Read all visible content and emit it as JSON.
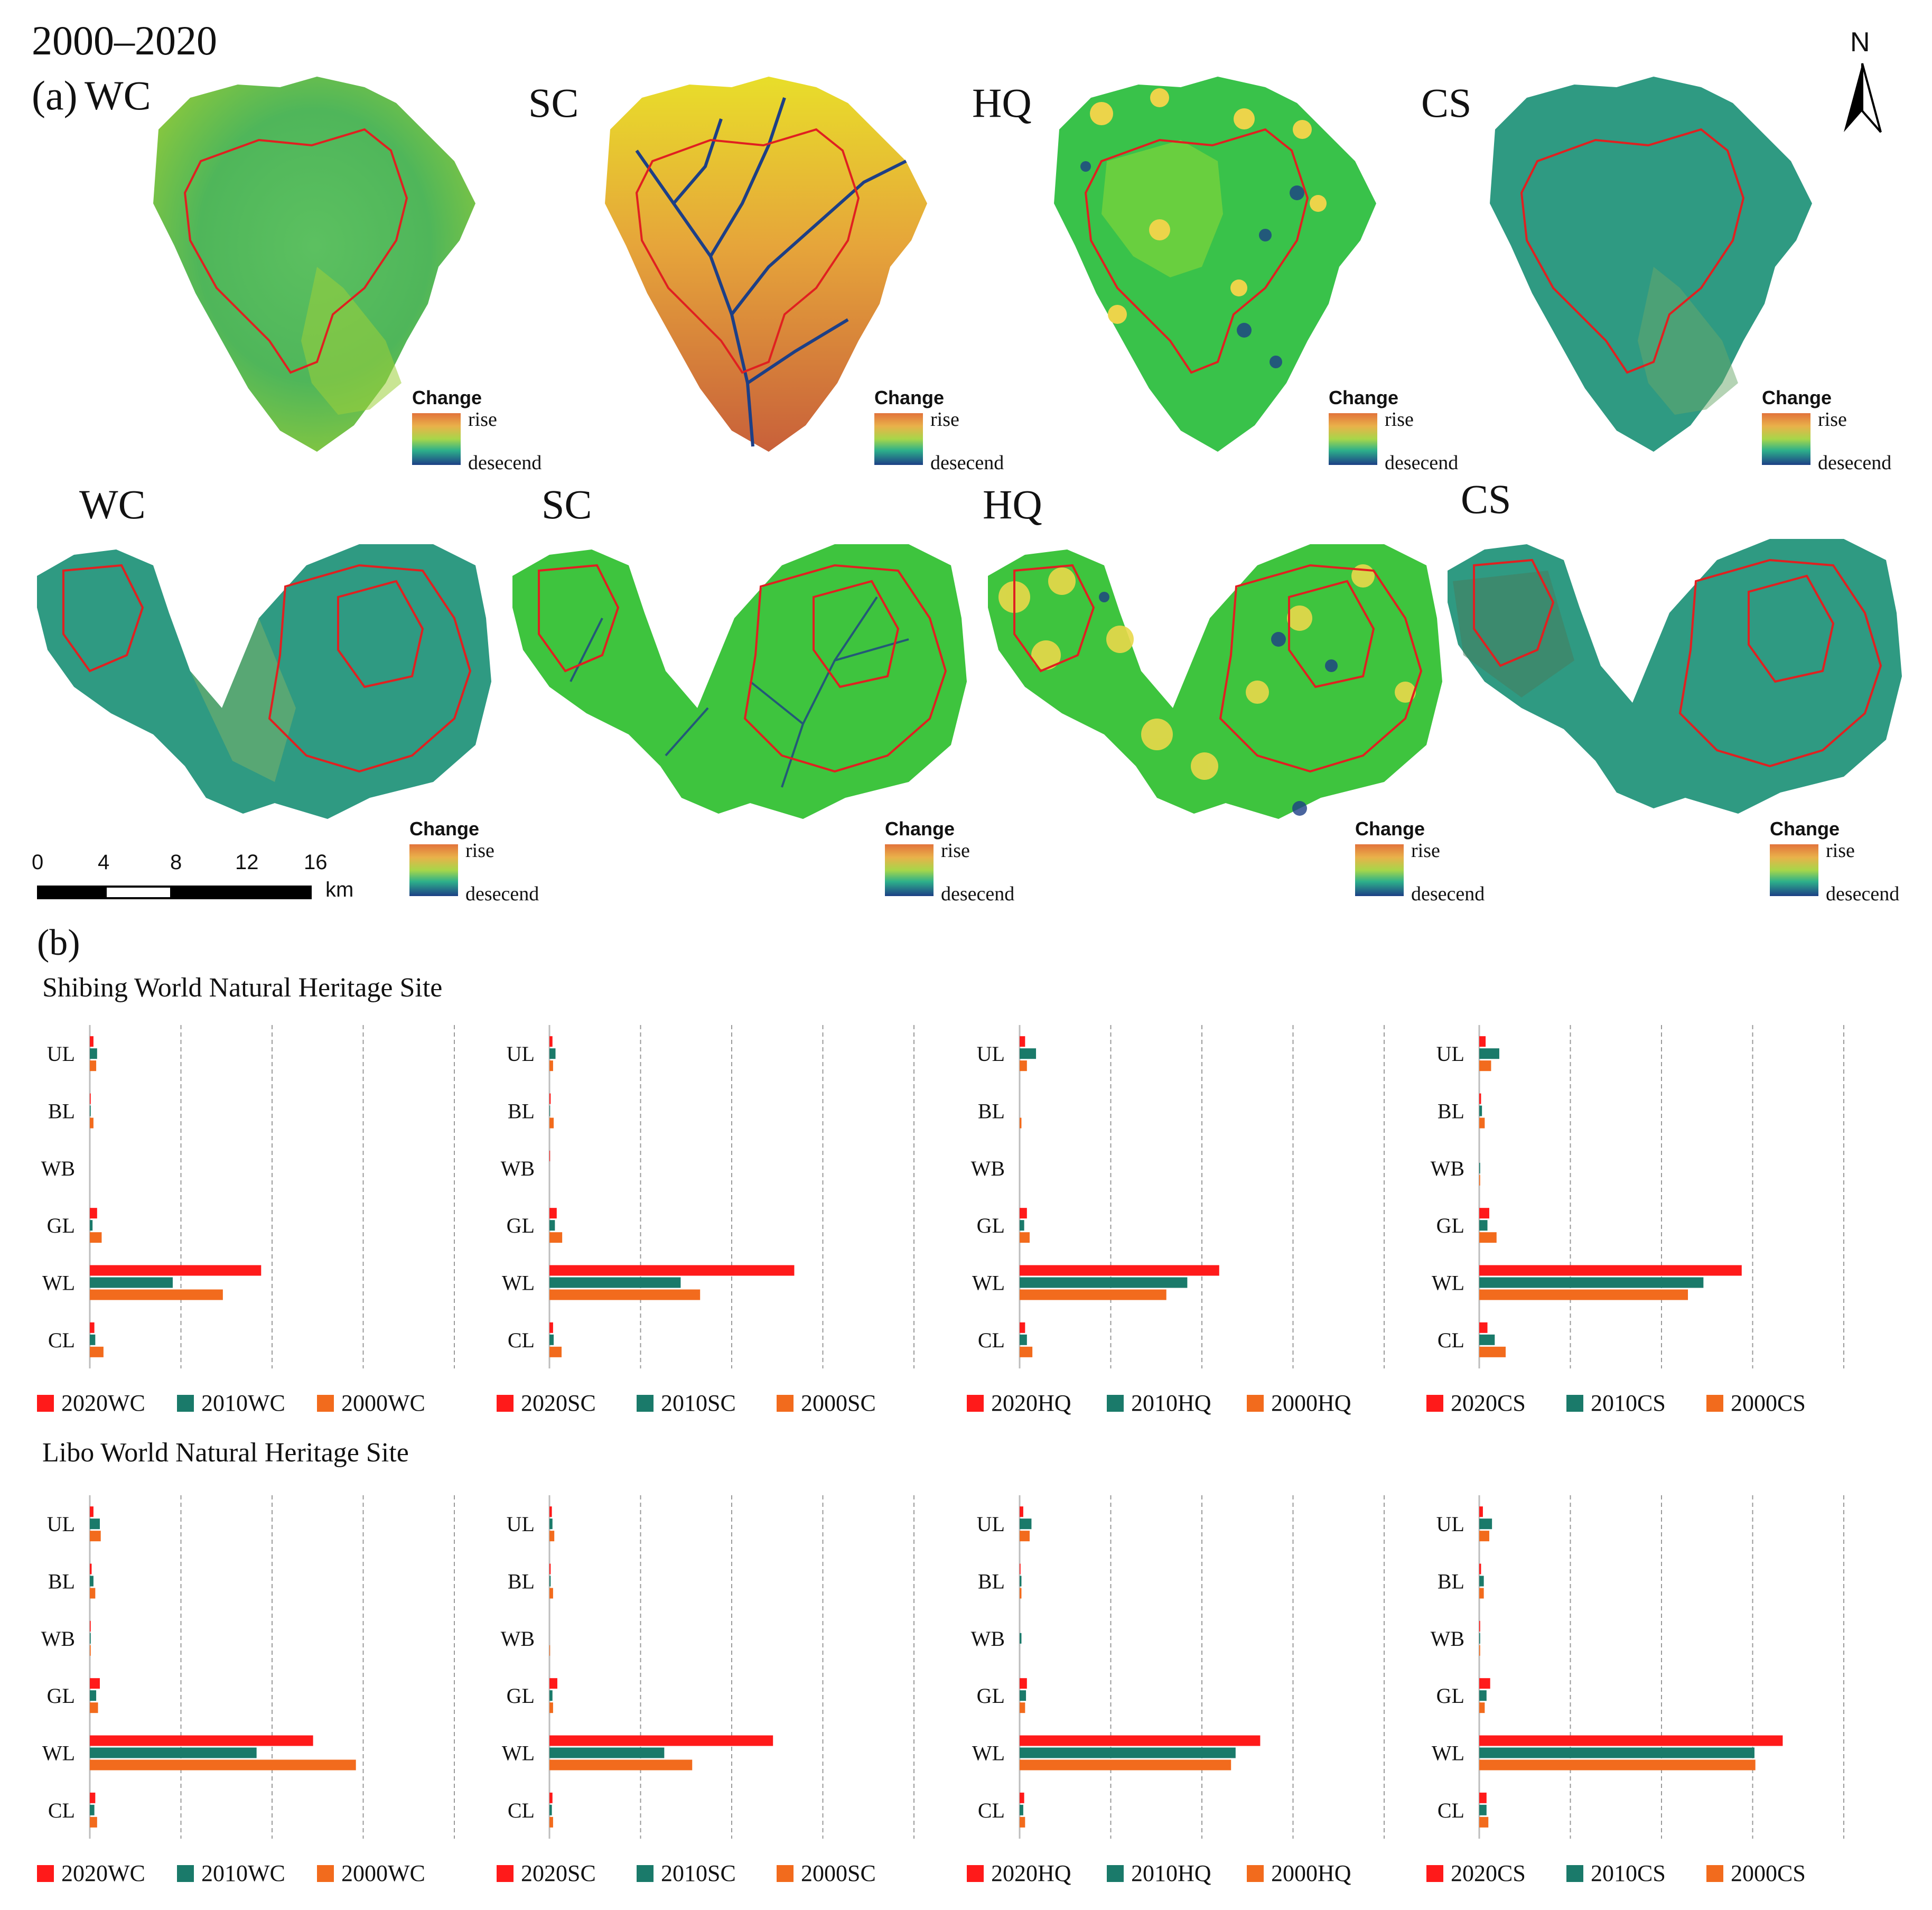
{
  "figure": {
    "period_title": "2000–2020",
    "panel_a_label": "(a)",
    "panel_b_label": "(b)",
    "north_label": "N",
    "map_row1_titles": [
      "WC",
      "SC",
      "HQ",
      "CS"
    ],
    "map_row2_titles": [
      "WC",
      "SC",
      "HQ",
      "CS"
    ],
    "legend": {
      "title": "Change",
      "high": "rise",
      "low": "desecend"
    },
    "scalebar": {
      "ticks": [
        "0",
        "4",
        "8",
        "12",
        "16"
      ],
      "unit": "km"
    },
    "colors": {
      "y2020": "#ff1a1a",
      "y2010": "#1a7a6a",
      "y2000": "#f26b1d",
      "boundary": "#e02020",
      "gridline": "#999999"
    }
  },
  "site_titles": {
    "shibing": "Shibing World Natural Heritage Site",
    "libo": "Libo World Natural Heritage Site"
  },
  "chart_data": [
    {
      "type": "bar",
      "site": "Shibing",
      "indicator": "WC",
      "categories": [
        "UL",
        "BL",
        "WB",
        "GL",
        "WL",
        "CL"
      ],
      "series": [
        {
          "name": "2020WC",
          "values": [
            0.4,
            0.1,
            0.0,
            0.8,
            18.8,
            0.5
          ]
        },
        {
          "name": "2010WC",
          "values": [
            0.8,
            0.1,
            0.0,
            0.3,
            9.1,
            0.6
          ]
        },
        {
          "name": "2000WC",
          "values": [
            0.7,
            0.4,
            0.0,
            1.3,
            14.6,
            1.5
          ]
        }
      ],
      "xlim": [
        0,
        40
      ]
    },
    {
      "type": "bar",
      "site": "Shibing",
      "indicator": "SC",
      "categories": [
        "UL",
        "BL",
        "WB",
        "GL",
        "WL",
        "CL"
      ],
      "series": [
        {
          "name": "2020SC",
          "values": [
            0.5,
            0.2,
            0.1,
            1.2,
            40.3,
            0.6
          ]
        },
        {
          "name": "2010SC",
          "values": [
            1.0,
            0.1,
            0.0,
            0.9,
            21.6,
            0.7
          ]
        },
        {
          "name": "2000SC",
          "values": [
            0.6,
            0.7,
            0.0,
            2.1,
            24.8,
            2.0
          ]
        }
      ],
      "xlim": [
        0,
        60
      ]
    },
    {
      "type": "bar",
      "site": "Shibing",
      "indicator": "HQ",
      "categories": [
        "UL",
        "BL",
        "WB",
        "GL",
        "WL",
        "CL"
      ],
      "series": [
        {
          "name": "2020HQ",
          "values": [
            0.6,
            0.0,
            0.0,
            0.8,
            21.9,
            0.6
          ]
        },
        {
          "name": "2010HQ",
          "values": [
            1.8,
            0.0,
            0.0,
            0.5,
            18.4,
            0.8
          ]
        },
        {
          "name": "2000HQ",
          "values": [
            0.8,
            0.2,
            0.0,
            1.1,
            16.1,
            1.4
          ]
        }
      ],
      "xlim": [
        0,
        40
      ]
    },
    {
      "type": "bar",
      "site": "Shibing",
      "indicator": "CS",
      "categories": [
        "UL",
        "BL",
        "WB",
        "GL",
        "WL",
        "CL"
      ],
      "series": [
        {
          "name": "2020CS",
          "values": [
            0.7,
            0.2,
            0.0,
            1.1,
            28.8,
            0.9
          ]
        },
        {
          "name": "2010CS",
          "values": [
            2.2,
            0.3,
            0.1,
            0.9,
            24.6,
            1.7
          ]
        },
        {
          "name": "2000CS",
          "values": [
            1.3,
            0.6,
            0.1,
            1.9,
            22.9,
            2.9
          ]
        }
      ],
      "xlim": [
        0,
        40
      ]
    },
    {
      "type": "bar",
      "site": "Libo",
      "indicator": "WC",
      "categories": [
        "UL",
        "BL",
        "WB",
        "GL",
        "WL",
        "CL"
      ],
      "series": [
        {
          "name": "2020WC",
          "values": [
            0.4,
            0.2,
            0.1,
            1.1,
            24.5,
            0.6
          ]
        },
        {
          "name": "2010WC",
          "values": [
            1.1,
            0.4,
            0.1,
            0.7,
            18.3,
            0.5
          ]
        },
        {
          "name": "2000WC",
          "values": [
            1.2,
            0.6,
            0.1,
            0.9,
            29.2,
            0.8
          ]
        }
      ],
      "xlim": [
        0,
        40
      ]
    },
    {
      "type": "bar",
      "site": "Libo",
      "indicator": "SC",
      "categories": [
        "UL",
        "BL",
        "WB",
        "GL",
        "WL",
        "CL"
      ],
      "series": [
        {
          "name": "2020SC",
          "values": [
            0.4,
            0.2,
            0.0,
            1.3,
            36.8,
            0.5
          ]
        },
        {
          "name": "2010SC",
          "values": [
            0.5,
            0.2,
            0.0,
            0.5,
            18.9,
            0.4
          ]
        },
        {
          "name": "2000SC",
          "values": [
            0.8,
            0.6,
            0.1,
            0.6,
            23.5,
            0.6
          ]
        }
      ],
      "xlim": [
        0,
        60
      ]
    },
    {
      "type": "bar",
      "site": "Libo",
      "indicator": "HQ",
      "categories": [
        "UL",
        "BL",
        "WB",
        "GL",
        "WL",
        "CL"
      ],
      "series": [
        {
          "name": "2020HQ",
          "values": [
            0.4,
            0.1,
            0.0,
            0.8,
            26.4,
            0.5
          ]
        },
        {
          "name": "2010HQ",
          "values": [
            1.3,
            0.2,
            0.2,
            0.7,
            23.7,
            0.4
          ]
        },
        {
          "name": "2000HQ",
          "values": [
            1.1,
            0.2,
            0.0,
            0.6,
            23.2,
            0.6
          ]
        }
      ],
      "xlim": [
        0,
        40
      ]
    },
    {
      "type": "bar",
      "site": "Libo",
      "indicator": "CS",
      "categories": [
        "UL",
        "BL",
        "WB",
        "GL",
        "WL",
        "CL"
      ],
      "series": [
        {
          "name": "2020CS",
          "values": [
            0.4,
            0.2,
            0.1,
            1.2,
            33.3,
            0.8
          ]
        },
        {
          "name": "2010CS",
          "values": [
            1.4,
            0.5,
            0.1,
            0.8,
            30.2,
            0.8
          ]
        },
        {
          "name": "2000CS",
          "values": [
            1.1,
            0.5,
            0.1,
            0.6,
            30.3,
            1.0
          ]
        }
      ],
      "xlim": [
        0,
        40
      ]
    }
  ]
}
